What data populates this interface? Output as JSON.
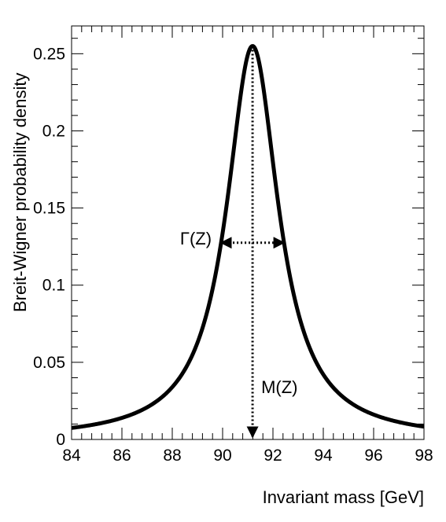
{
  "chart_data": {
    "type": "line",
    "title": "",
    "xlabel": "Invariant mass [GeV]",
    "ylabel": "Breit-Wigner probability density",
    "xlim": [
      84,
      98
    ],
    "ylim": [
      0,
      0.268
    ],
    "x_ticks": [
      84,
      86,
      88,
      90,
      92,
      94,
      96,
      98
    ],
    "x_tick_labels": [
      "84",
      "86",
      "88",
      "90",
      "92",
      "94",
      "96",
      "98"
    ],
    "y_ticks": [
      0,
      0.05,
      0.1,
      0.15,
      0.2,
      0.25
    ],
    "y_tick_labels": [
      "0",
      "0.05",
      "0.1",
      "0.15",
      "0.2",
      "0.25"
    ],
    "grid": false,
    "series": [
      {
        "name": "Breit-Wigner",
        "function": "breit-wigner",
        "mass": 91.19,
        "width": 2.5,
        "peak_value": 0.255,
        "color": "#000000"
      }
    ],
    "annotations": {
      "width_label": "Γ(Z)",
      "mass_label": "M(Z)",
      "width_arrow": {
        "x_from": 89.94,
        "x_to": 92.44,
        "y": 0.1275
      },
      "mass_arrow": {
        "x": 91.19,
        "y_from": 0.255,
        "y_to": 0
      }
    }
  }
}
